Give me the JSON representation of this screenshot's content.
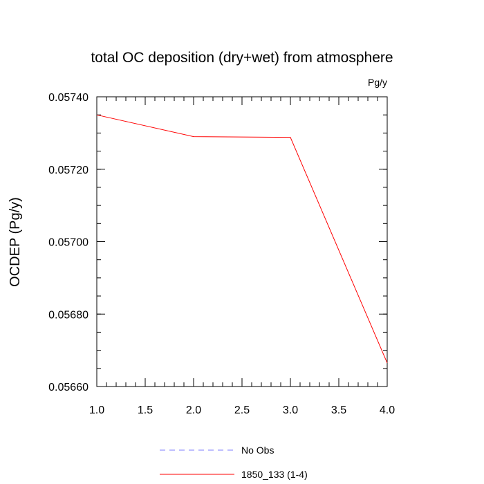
{
  "chart_data": {
    "type": "line",
    "title": "total OC deposition (dry+wet) from atmosphere",
    "units_label": "Pg/y",
    "xlabel": "",
    "ylabel": "OCDEP  (Pg/y)",
    "xlim": [
      1.0,
      4.0
    ],
    "ylim": [
      0.0566,
      0.0574
    ],
    "x_ticks": [
      "1.0",
      "1.5",
      "2.0",
      "2.5",
      "3.0",
      "3.5",
      "4.0"
    ],
    "x_tick_values": [
      1.0,
      1.5,
      2.0,
      2.5,
      3.0,
      3.5,
      4.0
    ],
    "y_ticks": [
      "0.05660",
      "0.05680",
      "0.05700",
      "0.05720",
      "0.05740"
    ],
    "y_tick_values": [
      0.0566,
      0.0568,
      0.057,
      0.0572,
      0.0574
    ],
    "grid": false,
    "legend_position": "bottom-center",
    "series": [
      {
        "name": "No Obs",
        "color": "#7d7dff",
        "dash": "dashed",
        "x": [],
        "y": []
      },
      {
        "name": "1850_133 (1-4)",
        "color": "#ff0000",
        "dash": "solid",
        "x": [
          1.0,
          2.0,
          3.0,
          4.0
        ],
        "y": [
          0.05735,
          0.05729,
          0.057288,
          0.056665
        ]
      }
    ]
  }
}
